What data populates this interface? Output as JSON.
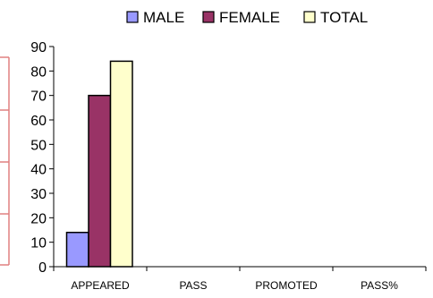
{
  "chart_data": {
    "type": "bar",
    "title": "",
    "xlabel": "",
    "ylabel": "",
    "categories": [
      "APPEARED",
      "PASS",
      "PROMOTED",
      "PASS%"
    ],
    "series": [
      {
        "name": "MALE",
        "values": [
          14,
          0,
          0,
          0
        ],
        "color": "#9999FF"
      },
      {
        "name": "FEMALE",
        "values": [
          70,
          0,
          0,
          0
        ],
        "color": "#993366"
      },
      {
        "name": "TOTAL",
        "values": [
          84,
          0,
          0,
          0
        ],
        "color": "#FFFFCC"
      }
    ],
    "ylim": [
      0,
      90
    ],
    "yticks": [
      0,
      10,
      20,
      30,
      40,
      50,
      60,
      70,
      80,
      90
    ],
    "grid": false,
    "legend": "top-center",
    "accent": {
      "border_red": "#E04040",
      "axis": "#000000"
    }
  }
}
